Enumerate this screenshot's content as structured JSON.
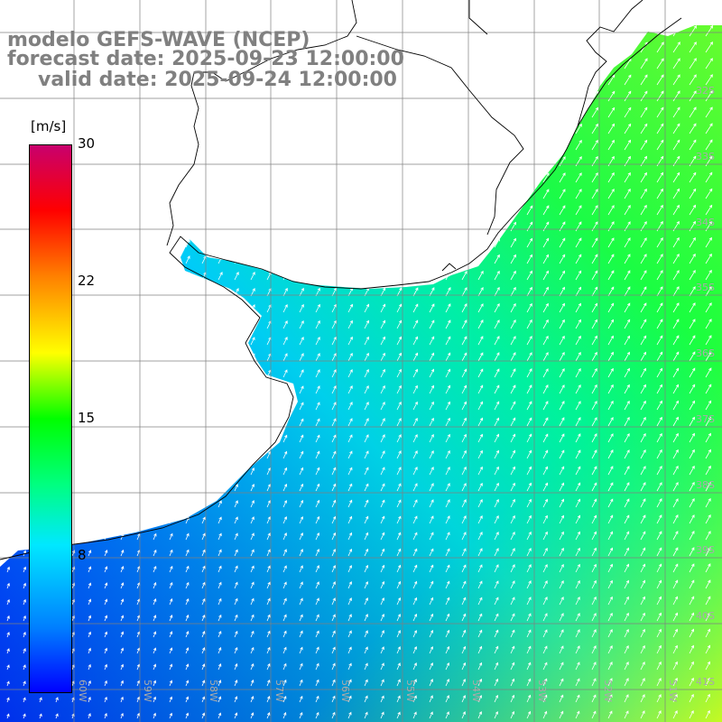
{
  "title": {
    "line1": "modelo GEFS-WAVE (NCEP)",
    "line2": "forecast date: 2025-09-23 12:00:00",
    "line3": "valid date: 2025-09-24 12:00:00"
  },
  "colorbar": {
    "unit": "[m/s]",
    "ticks": [
      "30",
      "22",
      "15",
      "8"
    ],
    "range": [
      0,
      30
    ],
    "colors": [
      "#0000ff",
      "#0080ff",
      "#00e0ff",
      "#00ff80",
      "#00ff00",
      "#80ff00",
      "#ffff00",
      "#ff8000",
      "#ff0000",
      "#c8006e"
    ]
  },
  "axes": {
    "lat_labels": [
      "32S",
      "33S",
      "34S",
      "35S",
      "36S",
      "37S",
      "38S",
      "39S",
      "40S",
      "41S"
    ],
    "lon_labels": [
      "60W",
      "59W",
      "58W",
      "57W",
      "56W",
      "55W",
      "54W",
      "53W",
      "52W",
      "51W"
    ]
  },
  "colors": {
    "land": "#ffffff",
    "coastline": "#000000",
    "grid": "#808080",
    "arrows": "#ffffff"
  }
}
